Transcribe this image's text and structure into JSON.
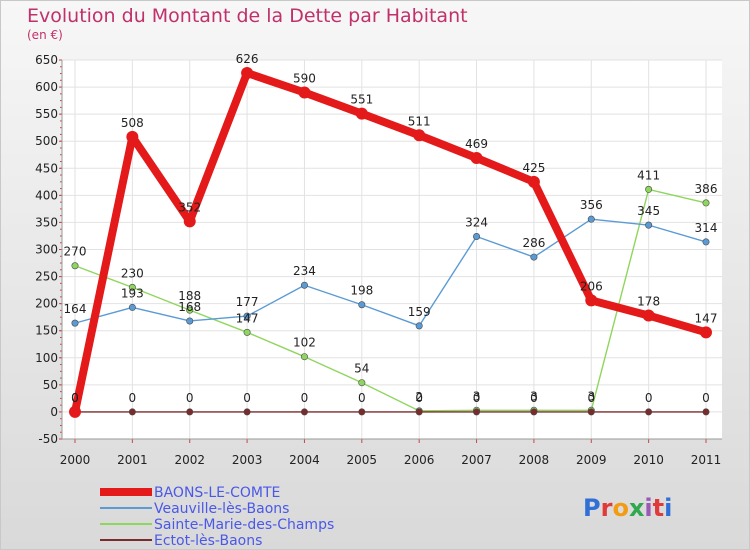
{
  "header": {
    "title": "Evolution du Montant de la Dette par Habitant",
    "subtitle": "(en €)"
  },
  "logo": {
    "text": "Proxiti"
  },
  "chart_data": {
    "type": "line",
    "title": "Evolution du Montant de la Dette par Habitant",
    "subtitle": "(en €)",
    "x": [
      "2000",
      "2001",
      "2002",
      "2003",
      "2004",
      "2005",
      "2006",
      "2007",
      "2008",
      "2009",
      "2010",
      "2011"
    ],
    "ylim": [
      -50,
      650
    ],
    "yticks": [
      -50,
      0,
      50,
      100,
      150,
      200,
      250,
      300,
      350,
      400,
      450,
      500,
      550,
      600,
      650
    ],
    "grid": true,
    "legend_position": "bottom-left",
    "series": [
      {
        "name": "BAONS-LE-COMTE",
        "color": "#e41a1a",
        "values": [
          0,
          508,
          352,
          626,
          590,
          551,
          511,
          469,
          425,
          206,
          178,
          147
        ]
      },
      {
        "name": "Veauville-lès-Baons",
        "color": "#5b9bd5",
        "values": [
          164,
          193,
          168,
          177,
          234,
          198,
          159,
          324,
          286,
          356,
          345,
          314
        ]
      },
      {
        "name": "Sainte-Marie-des-Champs",
        "color": "#8fd65e",
        "values": [
          270,
          230,
          188,
          147,
          102,
          54,
          2,
          3,
          3,
          3,
          411,
          386
        ]
      },
      {
        "name": "Ectot-lès-Baons",
        "color": "#7a2b2b",
        "values": [
          0,
          0,
          0,
          0,
          0,
          0,
          0,
          0,
          0,
          0,
          0,
          0
        ]
      }
    ]
  }
}
